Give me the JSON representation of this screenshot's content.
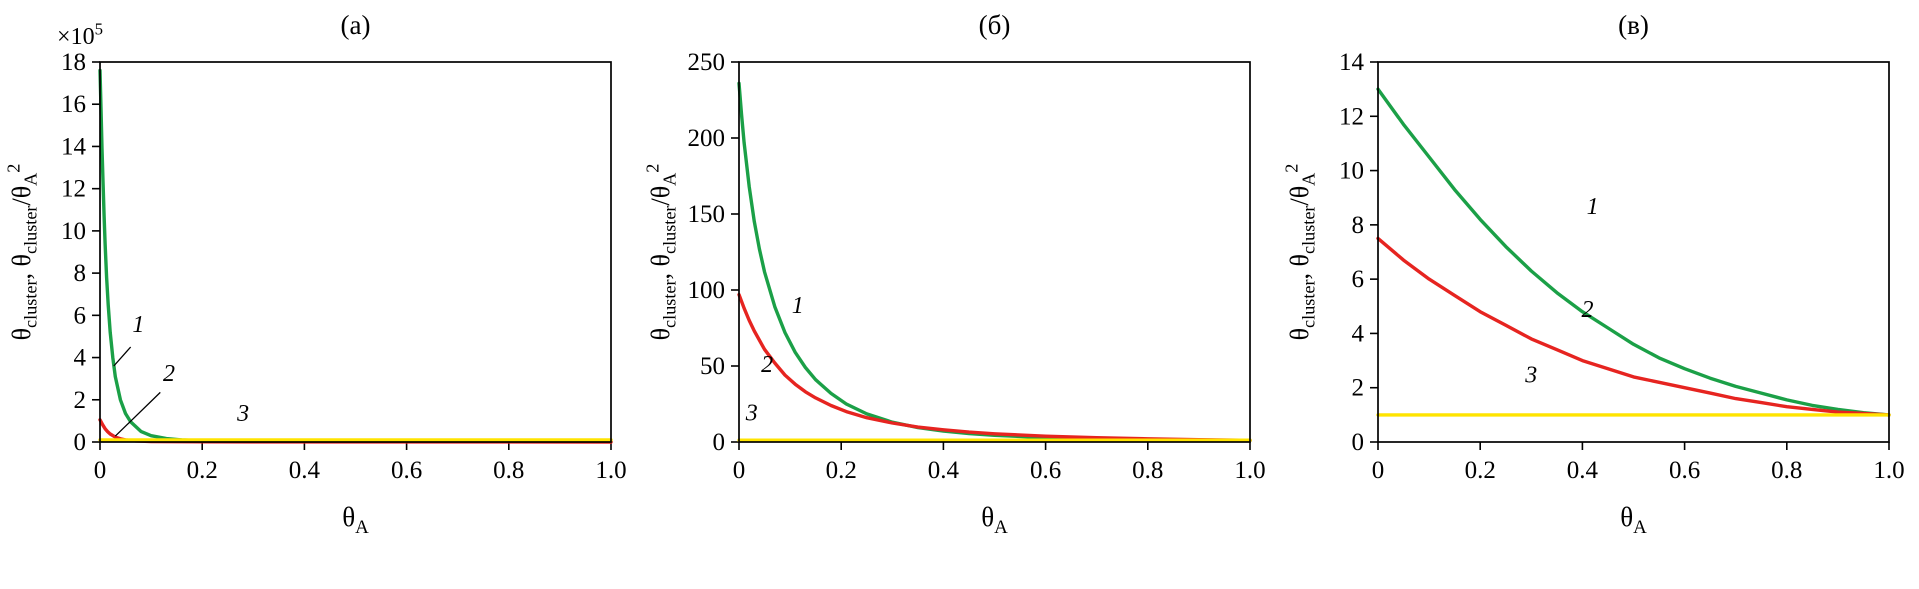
{
  "figure_background": "#ffffff",
  "chart_data": [
    {
      "type": "line",
      "title": "(а)",
      "xlabel": "θ_{A}",
      "ylabel": "θ_{cluster}, θ_{cluster}/θ_{A}^{2}",
      "scale_label": "×10^{5}",
      "xlim": [
        0,
        1.0
      ],
      "ylim": [
        0,
        18
      ],
      "xtick_values": [
        0,
        0.2,
        0.4,
        0.6,
        0.8,
        1.0
      ],
      "xtick_labels": [
        "0",
        "0.2",
        "0.4",
        "0.6",
        "0.8",
        "1.0"
      ],
      "ytick_values": [
        0,
        2,
        4,
        6,
        8,
        10,
        12,
        14,
        16,
        18
      ],
      "ytick_labels": [
        "0",
        "2",
        "4",
        "6",
        "8",
        "10",
        "12",
        "14",
        "16",
        "18"
      ],
      "series": [
        {
          "name": "1",
          "color": "#1ba047",
          "points": [
            [
              0,
              17.6
            ],
            [
              0.002,
              15.8
            ],
            [
              0.004,
              13.9
            ],
            [
              0.006,
              12.2
            ],
            [
              0.008,
              10.7
            ],
            [
              0.01,
              9.4
            ],
            [
              0.013,
              7.8
            ],
            [
              0.016,
              6.5
            ],
            [
              0.02,
              5.2
            ],
            [
              0.025,
              4.0
            ],
            [
              0.03,
              3.1
            ],
            [
              0.04,
              2.0
            ],
            [
              0.05,
              1.35
            ],
            [
              0.06,
              0.95
            ],
            [
              0.08,
              0.5
            ],
            [
              0.1,
              0.3
            ],
            [
              0.13,
              0.16
            ],
            [
              0.16,
              0.1
            ],
            [
              0.2,
              0.06
            ],
            [
              0.3,
              0.03
            ],
            [
              0.5,
              0.015
            ],
            [
              0.75,
              0.01
            ],
            [
              1,
              0.008
            ]
          ]
        },
        {
          "name": "2",
          "color": "#e62420",
          "points": [
            [
              0,
              1.05
            ],
            [
              0.005,
              0.82
            ],
            [
              0.01,
              0.63
            ],
            [
              0.015,
              0.49
            ],
            [
              0.02,
              0.38
            ],
            [
              0.03,
              0.23
            ],
            [
              0.04,
              0.15
            ],
            [
              0.05,
              0.1
            ],
            [
              0.07,
              0.05
            ],
            [
              0.1,
              0.025
            ],
            [
              0.15,
              0.012
            ],
            [
              0.2,
              0.008
            ],
            [
              0.3,
              0.005
            ],
            [
              0.5,
              0.003
            ],
            [
              1,
              0.002
            ]
          ]
        },
        {
          "name": "3",
          "color": "#ffe400",
          "points": [
            [
              0,
              0.1
            ],
            [
              1,
              0.1
            ]
          ]
        }
      ],
      "annotations": [
        {
          "text": "1",
          "x": 0.075,
          "y": 5.2,
          "leader": [
            0.06,
            4.5,
            0.027,
            3.6
          ]
        },
        {
          "text": "2",
          "x": 0.135,
          "y": 2.9,
          "leader": [
            0.118,
            2.35,
            0.03,
            0.28
          ]
        },
        {
          "text": "3",
          "x": 0.28,
          "y": 1.0,
          "leader": null
        }
      ]
    },
    {
      "type": "line",
      "title": "(б)",
      "xlabel": "θ_{A}",
      "ylabel": "θ_{cluster}, θ_{cluster}/θ_{A}^{2}",
      "scale_label": "",
      "xlim": [
        0,
        1.0
      ],
      "ylim": [
        0,
        250
      ],
      "xtick_values": [
        0,
        0.2,
        0.4,
        0.6,
        0.8,
        1.0
      ],
      "xtick_labels": [
        "0",
        "0.2",
        "0.4",
        "0.6",
        "0.8",
        "1.0"
      ],
      "ytick_values": [
        0,
        50,
        100,
        150,
        200,
        250
      ],
      "ytick_labels": [
        "0",
        "50",
        "100",
        "150",
        "200",
        "250"
      ],
      "series": [
        {
          "name": "1",
          "color": "#1ba047",
          "points": [
            [
              0,
              236
            ],
            [
              0.005,
              215
            ],
            [
              0.01,
              197
            ],
            [
              0.02,
              168
            ],
            [
              0.03,
              145
            ],
            [
              0.04,
              127
            ],
            [
              0.05,
              112
            ],
            [
              0.07,
              89
            ],
            [
              0.09,
              72
            ],
            [
              0.11,
              59
            ],
            [
              0.13,
              49
            ],
            [
              0.15,
              41
            ],
            [
              0.18,
              32
            ],
            [
              0.21,
              25
            ],
            [
              0.25,
              18.5
            ],
            [
              0.3,
              13
            ],
            [
              0.35,
              9.5
            ],
            [
              0.4,
              7.2
            ],
            [
              0.45,
              5.6
            ],
            [
              0.5,
              4.4
            ],
            [
              0.6,
              2.9
            ],
            [
              0.7,
              2.1
            ],
            [
              0.8,
              1.6
            ],
            [
              0.9,
              1.25
            ],
            [
              1,
              1.0
            ]
          ]
        },
        {
          "name": "2",
          "color": "#e62420",
          "points": [
            [
              0,
              97
            ],
            [
              0.01,
              88
            ],
            [
              0.02,
              80
            ],
            [
              0.03,
              73
            ],
            [
              0.05,
              61
            ],
            [
              0.07,
              52
            ],
            [
              0.09,
              44
            ],
            [
              0.11,
              38
            ],
            [
              0.13,
              33
            ],
            [
              0.15,
              29
            ],
            [
              0.18,
              24
            ],
            [
              0.21,
              20
            ],
            [
              0.25,
              16
            ],
            [
              0.3,
              12.5
            ],
            [
              0.35,
              9.8
            ],
            [
              0.4,
              8.0
            ],
            [
              0.45,
              6.5
            ],
            [
              0.5,
              5.4
            ],
            [
              0.6,
              3.8
            ],
            [
              0.7,
              2.8
            ],
            [
              0.8,
              2.1
            ],
            [
              0.9,
              1.5
            ],
            [
              1,
              1.1
            ]
          ]
        },
        {
          "name": "3",
          "color": "#ffe400",
          "points": [
            [
              0,
              1.2
            ],
            [
              1,
              1.2
            ]
          ]
        }
      ],
      "annotations": [
        {
          "text": "1",
          "x": 0.115,
          "y": 85,
          "leader": null
        },
        {
          "text": "2",
          "x": 0.055,
          "y": 46,
          "leader": null
        },
        {
          "text": "3",
          "x": 0.025,
          "y": 14,
          "leader": null
        }
      ]
    },
    {
      "type": "line",
      "title": "(в)",
      "xlabel": "θ_{A}",
      "ylabel": "θ_{cluster}, θ_{cluster}/θ_{A}^{2}",
      "scale_label": "",
      "xlim": [
        0,
        1.0
      ],
      "ylim": [
        0,
        14
      ],
      "xtick_values": [
        0,
        0.2,
        0.4,
        0.6,
        0.8,
        1.0
      ],
      "xtick_labels": [
        "0",
        "0.2",
        "0.4",
        "0.6",
        "0.8",
        "1.0"
      ],
      "ytick_values": [
        0,
        2,
        4,
        6,
        8,
        10,
        12,
        14
      ],
      "ytick_labels": [
        "0",
        "2",
        "4",
        "6",
        "8",
        "10",
        "12",
        "14"
      ],
      "series": [
        {
          "name": "1",
          "color": "#1ba047",
          "points": [
            [
              0,
              13
            ],
            [
              0.05,
              11.7
            ],
            [
              0.1,
              10.5
            ],
            [
              0.15,
              9.3
            ],
            [
              0.2,
              8.2
            ],
            [
              0.25,
              7.2
            ],
            [
              0.3,
              6.3
            ],
            [
              0.35,
              5.5
            ],
            [
              0.4,
              4.8
            ],
            [
              0.45,
              4.2
            ],
            [
              0.5,
              3.6
            ],
            [
              0.55,
              3.1
            ],
            [
              0.6,
              2.7
            ],
            [
              0.65,
              2.35
            ],
            [
              0.7,
              2.05
            ],
            [
              0.75,
              1.8
            ],
            [
              0.8,
              1.55
            ],
            [
              0.85,
              1.35
            ],
            [
              0.9,
              1.2
            ],
            [
              0.95,
              1.08
            ],
            [
              1,
              1.0
            ]
          ]
        },
        {
          "name": "2",
          "color": "#e62420",
          "points": [
            [
              0,
              7.5
            ],
            [
              0.05,
              6.7
            ],
            [
              0.1,
              6.0
            ],
            [
              0.15,
              5.4
            ],
            [
              0.2,
              4.8
            ],
            [
              0.25,
              4.3
            ],
            [
              0.3,
              3.8
            ],
            [
              0.35,
              3.4
            ],
            [
              0.4,
              3.0
            ],
            [
              0.45,
              2.7
            ],
            [
              0.5,
              2.4
            ],
            [
              0.55,
              2.2
            ],
            [
              0.6,
              2.0
            ],
            [
              0.65,
              1.8
            ],
            [
              0.7,
              1.6
            ],
            [
              0.75,
              1.45
            ],
            [
              0.8,
              1.3
            ],
            [
              0.85,
              1.2
            ],
            [
              0.9,
              1.1
            ],
            [
              0.95,
              1.05
            ],
            [
              1,
              1.0
            ]
          ]
        },
        {
          "name": "3",
          "color": "#ffe400",
          "points": [
            [
              0,
              1.0
            ],
            [
              1,
              1.0
            ]
          ]
        }
      ],
      "annotations": [
        {
          "text": "1",
          "x": 0.42,
          "y": 8.4,
          "leader": null
        },
        {
          "text": "2",
          "x": 0.41,
          "y": 4.6,
          "leader": null
        },
        {
          "text": "3",
          "x": 0.3,
          "y": 2.2,
          "leader": null
        }
      ]
    }
  ]
}
